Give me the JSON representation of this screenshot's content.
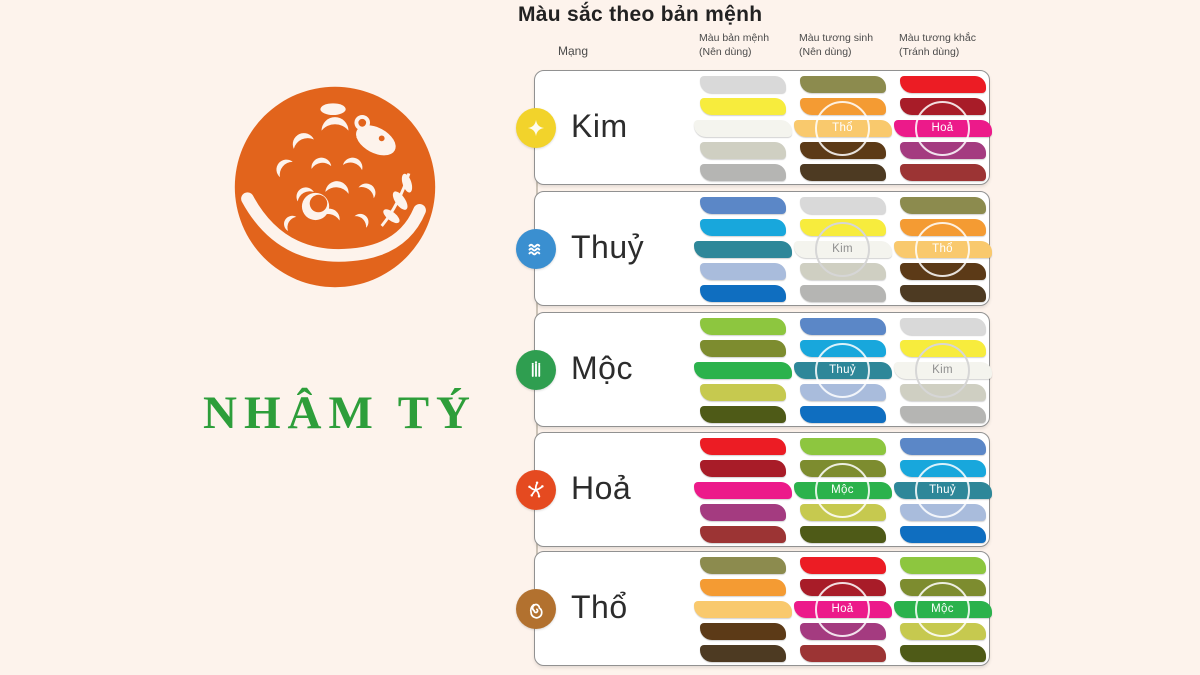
{
  "page": {
    "title": "Màu sắc theo bản mệnh",
    "year_label": "NHÂM TÝ",
    "background_color": "#fdf3ec"
  },
  "emblem": {
    "icon": "rat-papercut-emblem",
    "color": "#e2641c"
  },
  "table": {
    "headers": {
      "mang": "Mạng",
      "ban_menh": [
        "Màu bản mệnh",
        "(Nên dùng)"
      ],
      "tuong_sinh": [
        "Màu tương sinh",
        "(Nên dùng)"
      ],
      "tuong_khac": [
        "Màu tương khắc",
        "(Tránh dùng)"
      ]
    },
    "palettes": {
      "kim": {
        "label": "Kim",
        "colors": [
          "#d9d9d9",
          "#f7ec3d",
          "#f4f4ee",
          "#cfcfc2",
          "#b5b5b3"
        ],
        "overlay_ring": "#d6d6d6",
        "overlay_text": "#8f8f8f"
      },
      "thuy": {
        "label": "Thuỷ",
        "colors": [
          "#5b87c7",
          "#18a7dc",
          "#2e8799",
          "#a9bcdc",
          "#0f6ec0"
        ],
        "overlay_ring": "rgba(255,255,255,0.85)",
        "overlay_text": "#ffffff"
      },
      "moc": {
        "label": "Mộc",
        "colors": [
          "#8dc63f",
          "#7d8c2f",
          "#2bb24c",
          "#c6c94f",
          "#4e5a17"
        ],
        "overlay_ring": "rgba(255,255,255,0.85)",
        "overlay_text": "#ffffff"
      },
      "hoa": {
        "label": "Hoả",
        "colors": [
          "#ec1c24",
          "#a81c28",
          "#ec1a8a",
          "#a43b80",
          "#9c3434"
        ],
        "overlay_ring": "rgba(255,255,255,0.85)",
        "overlay_text": "#ffffff"
      },
      "tho": {
        "label": "Thổ",
        "colors": [
          "#8c8b4e",
          "#f49b33",
          "#f9c96d",
          "#5c3a17",
          "#4d3a22"
        ],
        "overlay_ring": "rgba(255,255,255,0.85)",
        "overlay_text": "#ffffff"
      }
    },
    "rows": [
      {
        "icon": "metal-sparkle-icon",
        "icon_key": "kim",
        "icon_bg": "#f2d32b",
        "ban_menh": "kim",
        "tuong_sinh": "tho",
        "tuong_khac": "hoa"
      },
      {
        "icon": "water-waves-icon",
        "icon_key": "thuy",
        "icon_bg": "#3a8fd0",
        "ban_menh": "thuy",
        "tuong_sinh": "kim",
        "tuong_khac": "tho"
      },
      {
        "icon": "wood-sprout-icon",
        "icon_key": "moc",
        "icon_bg": "#2f9e50",
        "ban_menh": "moc",
        "tuong_sinh": "thuy",
        "tuong_khac": "kim"
      },
      {
        "icon": "fire-spark-icon",
        "icon_key": "hoa",
        "icon_bg": "#e54a20",
        "ban_menh": "hoa",
        "tuong_sinh": "moc",
        "tuong_khac": "thuy"
      },
      {
        "icon": "earth-spiral-icon",
        "icon_key": "tho",
        "icon_bg": "#b2712f",
        "ban_menh": "tho",
        "tuong_sinh": "hoa",
        "tuong_khac": "moc"
      }
    ]
  }
}
